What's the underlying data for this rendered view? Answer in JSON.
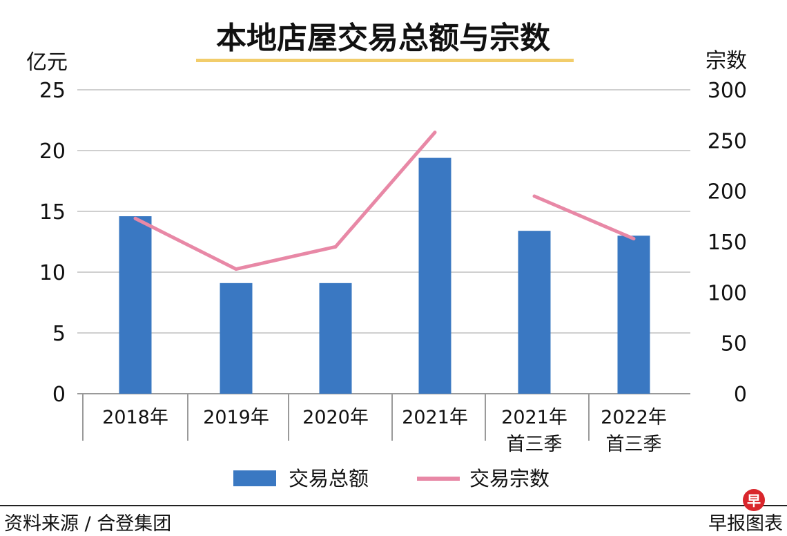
{
  "chart_data": {
    "type": "bar",
    "title": "本地店屋交易总额与宗数",
    "y_left_label": "亿元",
    "y_right_label": "宗数",
    "y_left_lim": [
      0,
      25
    ],
    "y_right_lim": [
      0,
      300
    ],
    "y_left_ticks": [
      "0",
      "5",
      "10",
      "15",
      "20",
      "25"
    ],
    "y_right_ticks": [
      "0",
      "50",
      "100",
      "150",
      "200",
      "250",
      "300"
    ],
    "categories": [
      [
        "2018年"
      ],
      [
        "2019年"
      ],
      [
        "2020年"
      ],
      [
        "2021年"
      ],
      [
        "2021年",
        "首三季"
      ],
      [
        "2022年",
        "首三季"
      ]
    ],
    "series": [
      {
        "name": "交易总额",
        "type": "bar",
        "axis": "left",
        "color": "#3a78c2",
        "values": [
          14.6,
          9.1,
          9.1,
          19.4,
          13.4,
          13.0
        ]
      },
      {
        "name": "交易宗数",
        "type": "line",
        "axis": "right",
        "color": "#e888a6",
        "segments": [
          [
            0,
            1,
            2,
            3
          ],
          [
            4,
            5
          ]
        ],
        "values": [
          173,
          123,
          145,
          258,
          195,
          153
        ]
      }
    ],
    "grid": true,
    "legend_position": "bottom"
  },
  "footer": {
    "source": "资料来源 / 合登集团",
    "brand": "早报图表",
    "logo_char": "早"
  }
}
